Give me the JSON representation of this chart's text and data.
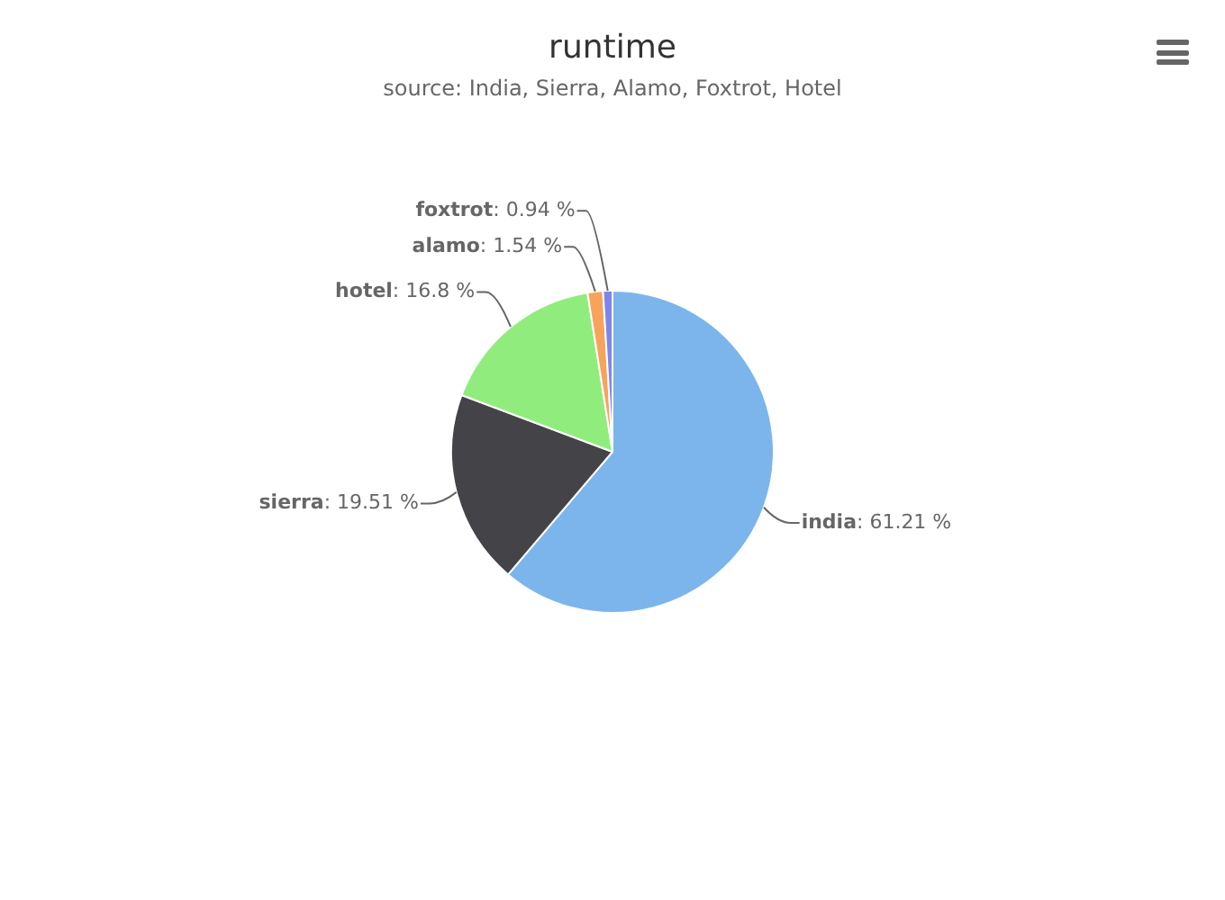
{
  "chart_data": {
    "type": "pie",
    "title": "runtime",
    "subtitle": "source: India, Sierra, Alamo, Foxtrot, Hotel",
    "categories": [
      "india",
      "sierra",
      "hotel",
      "alamo",
      "foxtrot"
    ],
    "values": [
      61.21,
      19.51,
      16.8,
      1.54,
      0.94
    ],
    "colors": [
      "#7cb5ec",
      "#434348",
      "#90ed7d",
      "#f7a35c",
      "#8085e9"
    ],
    "value_labels": [
      ": 61.21 %",
      ": 19.51 %",
      ": 16.8 %",
      ": 1.54 %",
      ": 0.94 %"
    ],
    "legend": false
  }
}
